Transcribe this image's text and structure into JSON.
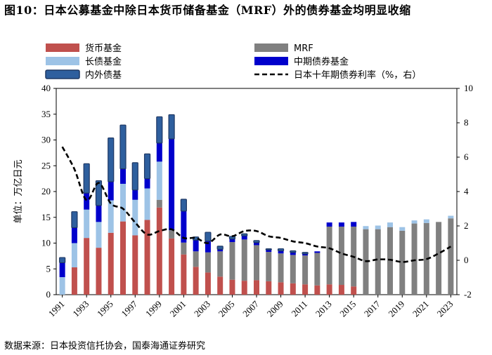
{
  "figure": {
    "title": "图10：日本公募基金中除日本货币储备基金（MRF）外的债券基金均明显收缩",
    "source": "数据来源：日本投资信托协会，国泰海通证券研究"
  },
  "chart_data": {
    "type": "bar",
    "stacked": true,
    "x": [
      1991,
      1992,
      1993,
      1994,
      1995,
      1996,
      1997,
      1998,
      1999,
      2000,
      2001,
      2002,
      2003,
      2004,
      2005,
      2006,
      2007,
      2008,
      2009,
      2010,
      2011,
      2012,
      2013,
      2014,
      2015,
      2016,
      2017,
      2018,
      2019,
      2020,
      2021,
      2022,
      2023
    ],
    "x_tick_labels": [
      "1991",
      "1993",
      "1995",
      "1997",
      "1999",
      "2001",
      "2003",
      "2005",
      "2007",
      "2009",
      "2011",
      "2013",
      "2015",
      "2017",
      "2019",
      "2021",
      "2023"
    ],
    "ylabel": "单位：万亿日元",
    "ylim": [
      0,
      40
    ],
    "y_ticks": [
      "0",
      "5",
      "10",
      "15",
      "20",
      "25",
      "30",
      "35",
      "40"
    ],
    "y2lim": [
      -2,
      10
    ],
    "y2_ticks": [
      "-2",
      "0",
      "2",
      "4",
      "6",
      "8",
      "10"
    ],
    "legend_position": "top",
    "series": [
      {
        "name": "货币基金",
        "color": "#c0504d",
        "values": [
          0,
          5.3,
          11,
          9.1,
          12,
          14.2,
          11.5,
          14.5,
          16.9,
          10.9,
          7.8,
          5.4,
          4.3,
          3.5,
          2.9,
          2.7,
          2.8,
          2.6,
          2.4,
          2.2,
          2,
          1.8,
          2,
          1.9,
          1.6,
          0,
          0,
          0,
          0,
          0,
          0,
          0,
          0
        ]
      },
      {
        "name": "MRF",
        "color": "#808080",
        "values": [
          0,
          0,
          0,
          0,
          0,
          0,
          0,
          0,
          1.5,
          1.6,
          2.3,
          3,
          3.9,
          4.9,
          7.3,
          8,
          6.8,
          5.7,
          5.6,
          5.5,
          5.6,
          6.3,
          11.2,
          11.3,
          11.6,
          12.7,
          12.7,
          13.1,
          12.4,
          13.8,
          13.9,
          14.1,
          14.8
        ]
      },
      {
        "name": "长债基金",
        "color": "#9dc3e6",
        "values": [
          3.4,
          4.7,
          5.5,
          5,
          6.3,
          7.3,
          6.9,
          6.1,
          7.4,
          0,
          0,
          0,
          0,
          0,
          0,
          0,
          0,
          0,
          0,
          0,
          0,
          0,
          0,
          0,
          0,
          0.6,
          0.7,
          0.9,
          0.7,
          0.6,
          0.7,
          0,
          0.5
        ]
      },
      {
        "name": "中期债券基金",
        "color": "#0000cc",
        "values": [
          2.8,
          3,
          3.2,
          3.2,
          3.6,
          2.9,
          1.9,
          1.9,
          3.6,
          17.7,
          6.1,
          2.2,
          2.2,
          0.4,
          0.6,
          0.7,
          0.5,
          0.4,
          0.5,
          0.5,
          0.3,
          0.3,
          0.8,
          0.8,
          0.9,
          0,
          0,
          0,
          0,
          0,
          0,
          0,
          0
        ]
      },
      {
        "name": "内外债基",
        "color": "#2e5f9e",
        "border": "#1f3864",
        "values": [
          1,
          3.1,
          5.7,
          4.8,
          8.5,
          8.5,
          5.3,
          4.8,
          5.1,
          4.7,
          2.3,
          0.6,
          1.7,
          0.6,
          0.5,
          0.4,
          0.4,
          0.2,
          0.4,
          0.3,
          0.3,
          0,
          0,
          0,
          0,
          0,
          0,
          0,
          0,
          0,
          0,
          0,
          0
        ]
      },
      {
        "name": "日本十年期债券利率（%，右）",
        "type": "line",
        "axis": "right",
        "color": "#000000",
        "dash": true,
        "x": [
          1991,
          1992,
          1993,
          1994,
          1995,
          1996,
          1997,
          1998,
          1999,
          2000,
          2001,
          2002,
          2003,
          2004,
          2005,
          2006,
          2007,
          2008,
          2009,
          2010,
          2011,
          2012,
          2013,
          2014,
          2015,
          2016,
          2017,
          2018,
          2019,
          2020,
          2021,
          2022,
          2023
        ],
        "values": [
          6.6,
          5.3,
          3.5,
          4.5,
          3.3,
          3.0,
          2.2,
          1.5,
          1.7,
          1.8,
          1.3,
          1.3,
          1.0,
          1.5,
          1.4,
          1.7,
          1.7,
          1.4,
          1.3,
          1.1,
          1.0,
          0.8,
          0.7,
          0.4,
          0.2,
          -0.05,
          0.05,
          0.03,
          -0.1,
          0.0,
          0.07,
          0.4,
          0.8
        ]
      }
    ]
  }
}
